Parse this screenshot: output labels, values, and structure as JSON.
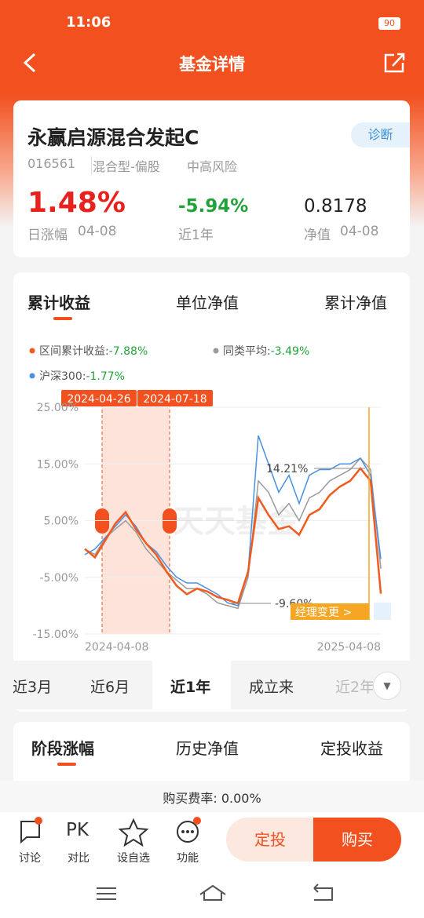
{
  "status_bar": {
    "time": "11:06",
    "battery": "90"
  },
  "header": {
    "title": "基金详情"
  },
  "fund": {
    "name": "永赢启源混合发起C",
    "tag": "诊断",
    "code": "016561",
    "category": "混合型-偏股",
    "risk": "中高风险",
    "stats": [
      {
        "value": "1.48%",
        "label": "日涨幅",
        "date": "04-08"
      },
      {
        "value": "-5.94%",
        "label": "近1年"
      },
      {
        "value": "0.8178",
        "label": "净值",
        "date": "04-08"
      }
    ]
  },
  "chart_tabs": [
    "累计收益",
    "单位净值",
    "累计净值"
  ],
  "chart_data": {
    "type": "line",
    "series": [
      {
        "name": "区间累计收益:",
        "change": "-7.88%",
        "color": "#f25a1d",
        "values": [
          0,
          -1.5,
          1.5,
          4.5,
          6.5,
          3.5,
          1,
          -1,
          -4,
          -6.5,
          -8,
          -7,
          -7.5,
          -8.5,
          -9,
          -9.6,
          -4,
          9,
          6,
          3.5,
          4,
          2.5,
          6,
          7,
          9.5,
          11,
          12,
          14.21,
          12,
          -7.88
        ]
      },
      {
        "name": "同类平均:",
        "change": "-3.49%",
        "color": "#9a9a9a",
        "values": [
          0,
          -1,
          2,
          3.5,
          5,
          3,
          0,
          -2,
          -4,
          -5.5,
          -7,
          -7,
          -8,
          -9.5,
          -10,
          -10.5,
          -5,
          12,
          10,
          6,
          8,
          5,
          9,
          10,
          12,
          13,
          14,
          16,
          14,
          -3.49
        ]
      },
      {
        "name": "沪深300:",
        "change": "-1.77%",
        "color": "#4a90e2",
        "values": [
          -1,
          0,
          2,
          4,
          6,
          4,
          1,
          -0.5,
          -3,
          -5,
          -6,
          -6,
          -7,
          -8,
          -9.5,
          -10,
          -4,
          20,
          15,
          10,
          13,
          8,
          13,
          14,
          14,
          15,
          15,
          16,
          13,
          -1.77
        ]
      }
    ],
    "ylim": [
      -15,
      25
    ],
    "yticks": [
      {
        "value": 25,
        "label": "25.00%"
      },
      {
        "value": 15,
        "label": "15.00%"
      },
      {
        "value": 5,
        "label": "5.00%"
      },
      {
        "value": -5,
        "label": "-5.00%"
      },
      {
        "value": -15,
        "label": "-15.00%"
      }
    ],
    "x_labels": [
      "2024-04-08",
      "2025-04-08"
    ],
    "markers": [
      "2024-04-26",
      "2024-07-18"
    ],
    "annotations": [
      {
        "label": "14.21%",
        "value": 14.21
      },
      {
        "label": "-9.60%",
        "value": -9.6
      }
    ],
    "watermark": "天天基金",
    "manager_button": "经理变更 >",
    "grid": true
  },
  "periods": [
    "近3月",
    "近6月",
    "近1年",
    "成立来",
    "近2年"
  ],
  "section_tabs": [
    "阶段涨幅",
    "历史净值",
    "定投收益"
  ],
  "fee": "购买费率: 0.00%",
  "toolbar": [
    {
      "label": "讨论"
    },
    {
      "icon": "PK",
      "label": "对比"
    },
    {
      "label": "设自选"
    },
    {
      "label": "功能"
    }
  ],
  "buttons": [
    "定投",
    "购买"
  ]
}
